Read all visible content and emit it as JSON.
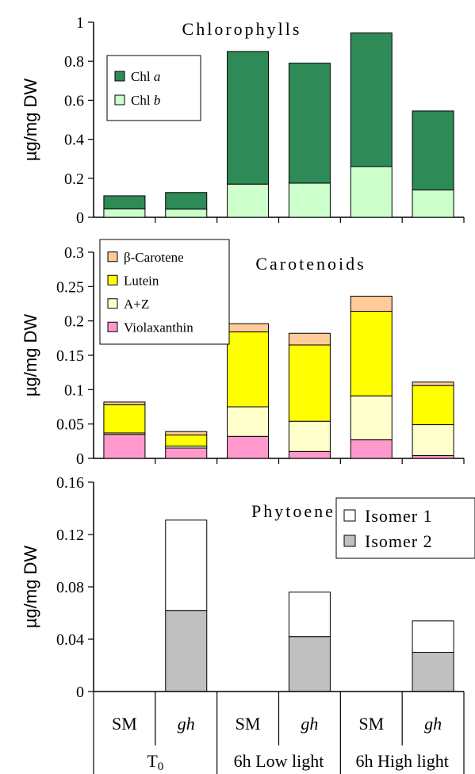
{
  "chart_data": [
    {
      "type": "bar",
      "stacked": true,
      "title": "Chlorophylls",
      "ylabel": "µg/mg DW",
      "ylim": [
        0,
        1
      ],
      "yticks": [
        "0",
        "0.2",
        "0.4",
        "0.6",
        "0.8",
        "1"
      ],
      "yticks_values": [
        0,
        0.2,
        0.4,
        0.6,
        0.8,
        1
      ],
      "legend_position": "top-left",
      "series": [
        {
          "name": "Chl b",
          "prefix": "Chl ",
          "italic": "b",
          "color": "#ccffcc",
          "values": [
            0.043,
            0.042,
            0.17,
            0.175,
            0.26,
            0.14
          ]
        },
        {
          "name": "Chl a",
          "prefix": "Chl ",
          "italic": "a",
          "color": "#2e8b57",
          "values": [
            0.067,
            0.085,
            0.68,
            0.615,
            0.685,
            0.405
          ]
        }
      ],
      "legend_order": [
        1,
        0
      ]
    },
    {
      "type": "bar",
      "stacked": true,
      "title": "Carotenoids",
      "ylabel": "µg/mg DW",
      "ylim": [
        0,
        0.3
      ],
      "yticks": [
        "0",
        "0.05",
        "0.1",
        "0.15",
        "0.2",
        "0.25",
        "0.3"
      ],
      "yticks_values": [
        0,
        0.05,
        0.1,
        0.15,
        0.2,
        0.25,
        0.3
      ],
      "legend_position": "top-left",
      "series": [
        {
          "name": "Violaxanthin",
          "color": "#ff99cc",
          "values": [
            0.035,
            0.015,
            0.032,
            0.01,
            0.027,
            0.004
          ]
        },
        {
          "name": "A+Z",
          "color": "#ffffcc",
          "values": [
            0.002,
            0.003,
            0.043,
            0.044,
            0.064,
            0.045
          ]
        },
        {
          "name": "Lutein",
          "color": "#ffff00",
          "values": [
            0.041,
            0.016,
            0.109,
            0.111,
            0.123,
            0.057
          ]
        },
        {
          "name": "β-Carotene",
          "color": "#ffcc99",
          "values": [
            0.004,
            0.005,
            0.012,
            0.017,
            0.022,
            0.005
          ]
        }
      ],
      "legend_order": [
        3,
        2,
        1,
        0
      ]
    },
    {
      "type": "bar",
      "stacked": true,
      "title": "Phytoene",
      "ylabel": "µg/mg DW",
      "ylim": [
        0,
        0.16
      ],
      "yticks": [
        "0",
        "0.04",
        "0.08",
        "0.12",
        "0.16"
      ],
      "yticks_values": [
        0,
        0.04,
        0.08,
        0.12,
        0.16
      ],
      "legend_position": "top-right",
      "series": [
        {
          "name": "Isomer 2",
          "color": "#c0c0c0",
          "values": [
            0,
            0.062,
            0,
            0.042,
            0,
            0.03
          ]
        },
        {
          "name": "Isomer 1",
          "color": "#ffffff",
          "values": [
            0,
            0.069,
            0,
            0.034,
            0,
            0.024
          ]
        }
      ],
      "legend_order": [
        1,
        0
      ]
    }
  ],
  "categories": [
    {
      "label": "SM",
      "italic": false
    },
    {
      "label": "gh",
      "italic": true
    },
    {
      "label": "SM",
      "italic": false
    },
    {
      "label": "gh",
      "italic": true
    },
    {
      "label": "SM",
      "italic": false
    },
    {
      "label": "gh",
      "italic": true
    }
  ],
  "groups": [
    {
      "label": "T",
      "sub": "0"
    },
    {
      "label": "6h Low light"
    },
    {
      "label": "6h High light"
    }
  ]
}
